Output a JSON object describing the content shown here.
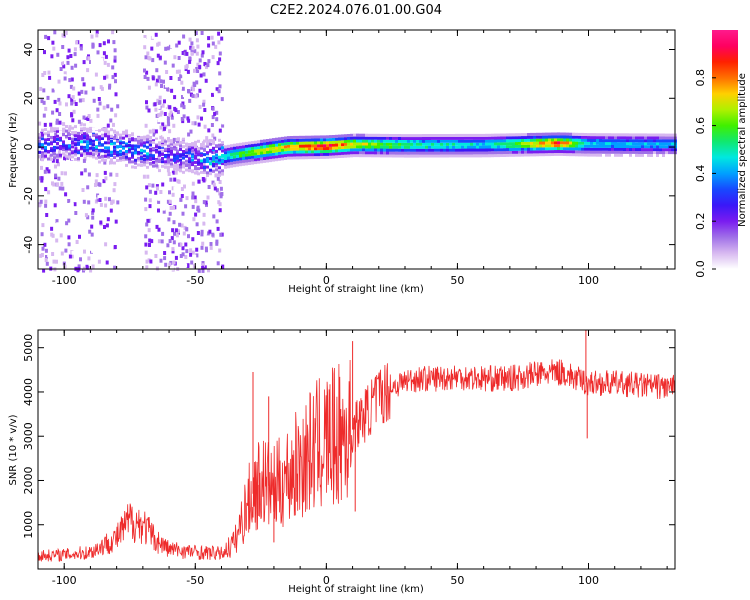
{
  "title": "C2E2.2024.076.01.00.G04",
  "chart_data": [
    {
      "type": "heatmap",
      "xlabel": "Height of straight line (km)",
      "ylabel": "Frequency (Hz)",
      "xlim": [
        -110,
        133
      ],
      "ylim": [
        -50,
        48
      ],
      "xticks": [
        -100,
        -50,
        0,
        50,
        100
      ],
      "yticks": [
        -40,
        -20,
        0,
        20,
        40
      ],
      "colorbar": {
        "label": "Normalized spectral amplitude",
        "range": [
          0,
          1
        ],
        "ticks": [
          "0.0",
          "0.2",
          "0.4",
          "0.6",
          "0.8"
        ],
        "tick_values": [
          0,
          0.2,
          0.4,
          0.6,
          0.8
        ],
        "colors": [
          "#ffffff",
          "#d7b8f0",
          "#a070e8",
          "#7a1cf0",
          "#3a18f8",
          "#1848ff",
          "#00a0ff",
          "#00e8e0",
          "#10e870",
          "#40f000",
          "#b0f000",
          "#ffd000",
          "#ff7000",
          "#ff2000",
          "#ff0060",
          "#ff1a8c"
        ]
      },
      "ridge": [
        {
          "x": -110,
          "freq": 1.0,
          "amp": 0.3
        },
        {
          "x": -90,
          "freq": 1.5,
          "amp": 0.35
        },
        {
          "x": -75,
          "freq": -1.0,
          "amp": 0.4
        },
        {
          "x": -60,
          "freq": -3.0,
          "amp": 0.25
        },
        {
          "x": -45,
          "freq": -5.0,
          "amp": 0.4
        },
        {
          "x": -35,
          "freq": -3.0,
          "amp": 0.55
        },
        {
          "x": -25,
          "freq": -1.5,
          "amp": 0.7
        },
        {
          "x": -15,
          "freq": 0.0,
          "amp": 0.75
        },
        {
          "x": 0,
          "freq": 0.3,
          "amp": 0.9
        },
        {
          "x": 10,
          "freq": 1.0,
          "amp": 0.7
        },
        {
          "x": 30,
          "freq": 0.8,
          "amp": 0.55
        },
        {
          "x": 60,
          "freq": 0.9,
          "amp": 0.45
        },
        {
          "x": 88,
          "freq": 1.5,
          "amp": 0.85
        },
        {
          "x": 100,
          "freq": 1.2,
          "amp": 0.45
        },
        {
          "x": 133,
          "freq": 1.0,
          "amp": 0.4
        }
      ]
    },
    {
      "type": "line",
      "xlabel": "Height of straight line (km)",
      "ylabel": "SNR (10 * v/v)",
      "xlim": [
        -110,
        133
      ],
      "ylim": [
        0,
        5400
      ],
      "xticks": [
        -100,
        -50,
        0,
        50,
        100
      ],
      "yticks": [
        1000,
        2000,
        3000,
        4000,
        5000
      ],
      "series": [
        {
          "name": "SNR",
          "color": "#ee2b2b",
          "x": [
            -110,
            -100,
            -90,
            -80,
            -75,
            -70,
            -65,
            -60,
            -50,
            -40,
            -35,
            -30,
            -25,
            -20,
            -15,
            -10,
            -5,
            0,
            5,
            10,
            15,
            20,
            25,
            30,
            35,
            40,
            50,
            60,
            70,
            80,
            90,
            95,
            100,
            110,
            120,
            133
          ],
          "y": [
            300,
            320,
            380,
            700,
            1100,
            1000,
            650,
            450,
            380,
            350,
            600,
            1500,
            2000,
            1800,
            2100,
            2400,
            2700,
            2900,
            3000,
            3150,
            3500,
            3900,
            4100,
            4250,
            4300,
            4300,
            4350,
            4300,
            4300,
            4400,
            4450,
            4300,
            4200,
            4200,
            4150,
            4100
          ]
        }
      ],
      "spikes": [
        {
          "x": -28,
          "y": 4450
        },
        {
          "x": -26,
          "y": 1200
        },
        {
          "x": -22,
          "y": 3900
        },
        {
          "x": -20,
          "y": 600
        },
        {
          "x": 10,
          "y": 5150
        },
        {
          "x": 11,
          "y": 1300
        },
        {
          "x": 99,
          "y": 5400
        },
        {
          "x": 99.5,
          "y": 2950
        }
      ]
    }
  ]
}
